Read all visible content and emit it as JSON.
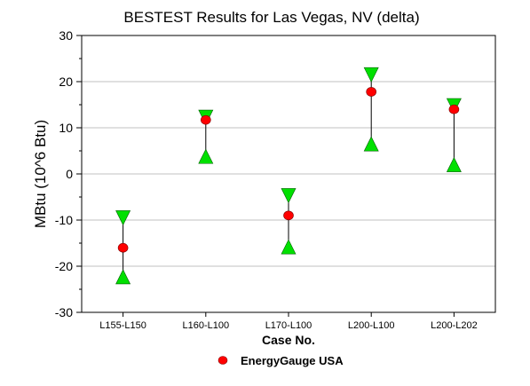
{
  "chart_data": {
    "type": "scatter",
    "title": "BESTEST Results for Las Vegas, NV (delta)",
    "xlabel": "Case No.",
    "ylabel": "MBtu (10^6 Btu)",
    "ylim": [
      -30,
      30
    ],
    "yticks": [
      "30",
      "20",
      "10",
      "0",
      "-10",
      "-20",
      "-30"
    ],
    "grid": true,
    "legend_position": "bottom-center",
    "categories": [
      "L155-L150",
      "L160-L100",
      "L170-L100",
      "L200-L100",
      "L200-L202"
    ],
    "series": [
      {
        "name": "EnergyGauge USA",
        "marker": "circle",
        "color": "#ff0000",
        "values": [
          -16.0,
          11.7,
          -9.0,
          17.8,
          14.0
        ]
      }
    ],
    "ranges": {
      "marker_max": "triangle-down",
      "marker_min": "triangle-up",
      "color": "#00e000",
      "max": [
        -9.5,
        12.3,
        -4.7,
        21.5,
        14.8
      ],
      "min": [
        -22.3,
        3.8,
        -15.8,
        6.5,
        2.0
      ]
    },
    "colors": {
      "grid": "#c0c0c0",
      "axis": "#000000",
      "range_line": "#000000"
    }
  }
}
